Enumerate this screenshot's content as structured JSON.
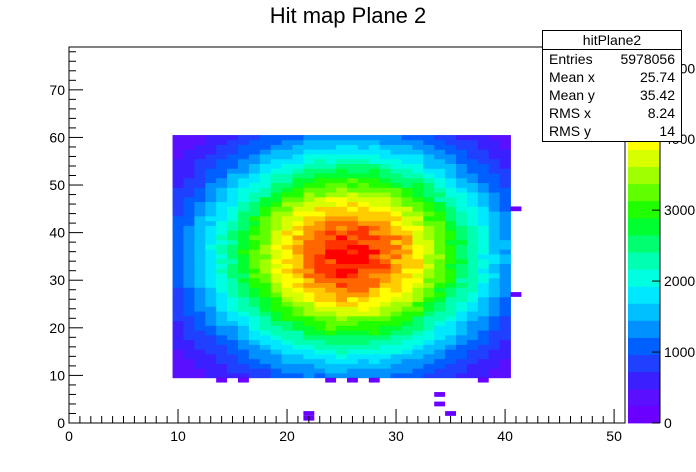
{
  "chart_data": {
    "type": "heatmap",
    "title": "Hit map Plane 2",
    "xlabel": "",
    "ylabel": "",
    "xlim": [
      0,
      51
    ],
    "ylim": [
      0,
      79
    ],
    "x_ticks": [
      "0",
      "10",
      "20",
      "30",
      "40",
      "50"
    ],
    "y_ticks": [
      "0",
      "10",
      "20",
      "30",
      "40",
      "50",
      "60",
      "70"
    ],
    "z_ticks": [
      "0",
      "1000",
      "2000",
      "3000",
      "4000",
      "5000"
    ],
    "z_max": 5300,
    "stats": {
      "name": "hitPlane2",
      "rows": [
        {
          "label": "Entries",
          "value": "5978056"
        },
        {
          "label": "Mean x",
          "value": "25.74"
        },
        {
          "label": "Mean y",
          "value": "35.42"
        },
        {
          "label": "RMS x",
          "value": "8.24"
        },
        {
          "label": "RMS y",
          "value": "14"
        }
      ]
    },
    "main_region": {
      "x": [
        9.5,
        40.5
      ],
      "y": [
        9.5,
        60.5
      ],
      "center_x": 25.74,
      "center_y": 35.42,
      "sigma_x": 9.0,
      "sigma_y": 15.3,
      "peak": 5100
    },
    "sparse_bins": [
      {
        "x": 14,
        "y": 9,
        "z": 150
      },
      {
        "x": 16,
        "y": 9,
        "z": 150
      },
      {
        "x": 24,
        "y": 9,
        "z": 150
      },
      {
        "x": 26,
        "y": 9,
        "z": 150
      },
      {
        "x": 28,
        "y": 9,
        "z": 150
      },
      {
        "x": 38,
        "y": 9,
        "z": 150
      },
      {
        "x": 34,
        "y": 6,
        "z": 150
      },
      {
        "x": 34,
        "y": 4,
        "z": 150
      },
      {
        "x": 35,
        "y": 2,
        "z": 150
      },
      {
        "x": 22,
        "y": 1,
        "z": 150
      },
      {
        "x": 22,
        "y": 2,
        "z": 150
      },
      {
        "x": 41,
        "y": 45,
        "z": 150
      },
      {
        "x": 41,
        "y": 27,
        "z": 150
      }
    ],
    "colors": {
      "palette": [
        "#6a00ff",
        "#5a10ff",
        "#3a20ff",
        "#2040ff",
        "#0060ff",
        "#0090ff",
        "#00bfff",
        "#00e8ff",
        "#00ffe0",
        "#00ffb0",
        "#00ff70",
        "#00ff30",
        "#20ff00",
        "#60ff00",
        "#a0ff00",
        "#d8ff00",
        "#ffff00",
        "#ffcc00",
        "#ff9900",
        "#ff6600",
        "#ff3300",
        "#ff0000"
      ]
    }
  }
}
